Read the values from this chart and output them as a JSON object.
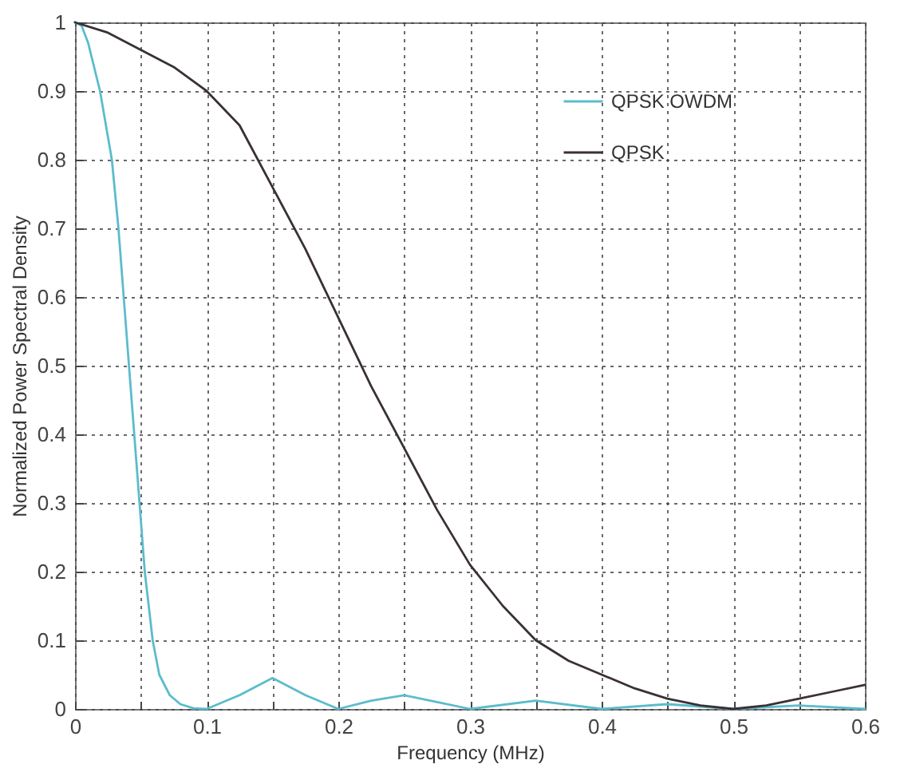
{
  "chart_data": {
    "type": "line",
    "xlabel": "Frequency (MHz)",
    "ylabel": "Normalized Power Spectral Density",
    "xlim": [
      0,
      0.6
    ],
    "ylim": [
      0,
      1
    ],
    "xticks": [
      0,
      {
        "value": 0.05,
        "label": null
      },
      0.1,
      {
        "value": 0.15,
        "label": null
      },
      0.2,
      {
        "value": 0.25,
        "label": null
      },
      0.3,
      {
        "value": 0.35,
        "label": null
      },
      0.4,
      {
        "value": 0.45,
        "label": null
      },
      0.5,
      {
        "value": 0.55,
        "label": null
      },
      0.6
    ],
    "yticks": [
      0,
      0.1,
      0.2,
      0.3,
      0.4,
      0.5,
      0.6,
      0.7,
      0.8,
      0.9,
      1
    ],
    "grid": true,
    "legend": "top right",
    "line_style": "solid",
    "series": [
      {
        "name": "QPSK OWDM",
        "color": "#5bbccc",
        "x": [
          0,
          0.005,
          0.01,
          0.019,
          0.028,
          0.033,
          0.037,
          0.041,
          0.045,
          0.049,
          0.053,
          0.059,
          0.064,
          0.072,
          0.08,
          0.09,
          0.1,
          0.125,
          0.15,
          0.175,
          0.2,
          0.225,
          0.25,
          0.275,
          0.3,
          0.35,
          0.4,
          0.45,
          0.5,
          0.55,
          0.6
        ],
        "values": [
          1,
          0.995,
          0.97,
          0.9,
          0.8,
          0.7,
          0.6,
          0.5,
          0.4,
          0.3,
          0.2,
          0.1,
          0.05,
          0.02,
          0.007,
          0.001,
          0,
          0.02,
          0.045,
          0.02,
          0,
          0.012,
          0.02,
          0.01,
          0,
          0.012,
          0,
          0.007,
          0,
          0.005,
          0
        ]
      },
      {
        "name": "QPSK",
        "color": "#3a3035",
        "x": [
          0,
          0.025,
          0.05,
          0.075,
          0.1,
          0.125,
          0.15,
          0.175,
          0.2,
          0.225,
          0.25,
          0.275,
          0.3,
          0.325,
          0.35,
          0.375,
          0.4,
          0.425,
          0.45,
          0.475,
          0.5,
          0.525,
          0.55,
          0.575,
          0.6
        ],
        "values": [
          1,
          0.985,
          0.96,
          0.935,
          0.9,
          0.85,
          0.76,
          0.67,
          0.57,
          0.47,
          0.38,
          0.29,
          0.21,
          0.15,
          0.1,
          0.07,
          0.05,
          0.03,
          0.015,
          0.005,
          0,
          0.005,
          0.015,
          0.025,
          0.035
        ]
      }
    ]
  }
}
